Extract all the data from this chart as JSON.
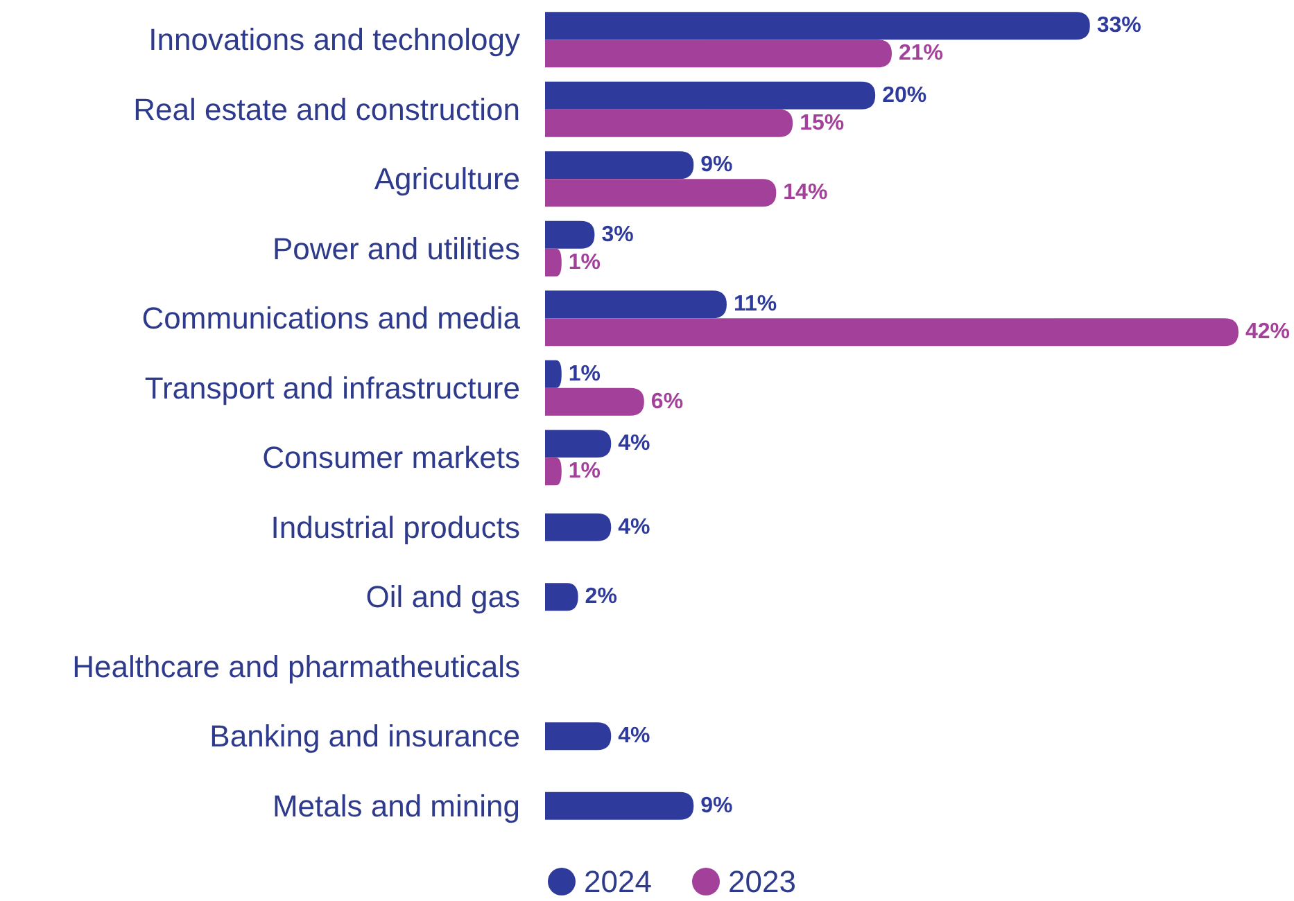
{
  "chart_data": {
    "type": "bar",
    "orientation": "horizontal",
    "legend": "bottom",
    "categories": [
      "Innovations and technology",
      "Real estate and construction",
      "Agriculture",
      "Power and utilities",
      "Communications and media",
      "Transport and infrastructure",
      "Consumer markets",
      "Industrial products",
      "Oil and gas",
      "Healthcare and pharmatheuticals",
      "Banking and insurance",
      "Metals and mining"
    ],
    "series": [
      {
        "name": "2024",
        "color": "#2f3b9c",
        "values": [
          33,
          20,
          9,
          3,
          11,
          1,
          4,
          4,
          2,
          null,
          4,
          9
        ],
        "value_labels": [
          "33%",
          "20%",
          "9%",
          "3%",
          "11%",
          "1%",
          "4%",
          "4%",
          "2%",
          null,
          "4%",
          "9%"
        ]
      },
      {
        "name": "2023",
        "color": "#a3409a",
        "values": [
          21,
          15,
          14,
          1,
          42,
          6,
          1,
          null,
          null,
          null,
          null,
          null
        ],
        "value_labels": [
          "21%",
          "15%",
          "14%",
          "1%",
          "42%",
          "6%",
          "1%",
          null,
          null,
          null,
          null,
          null
        ]
      }
    ]
  }
}
